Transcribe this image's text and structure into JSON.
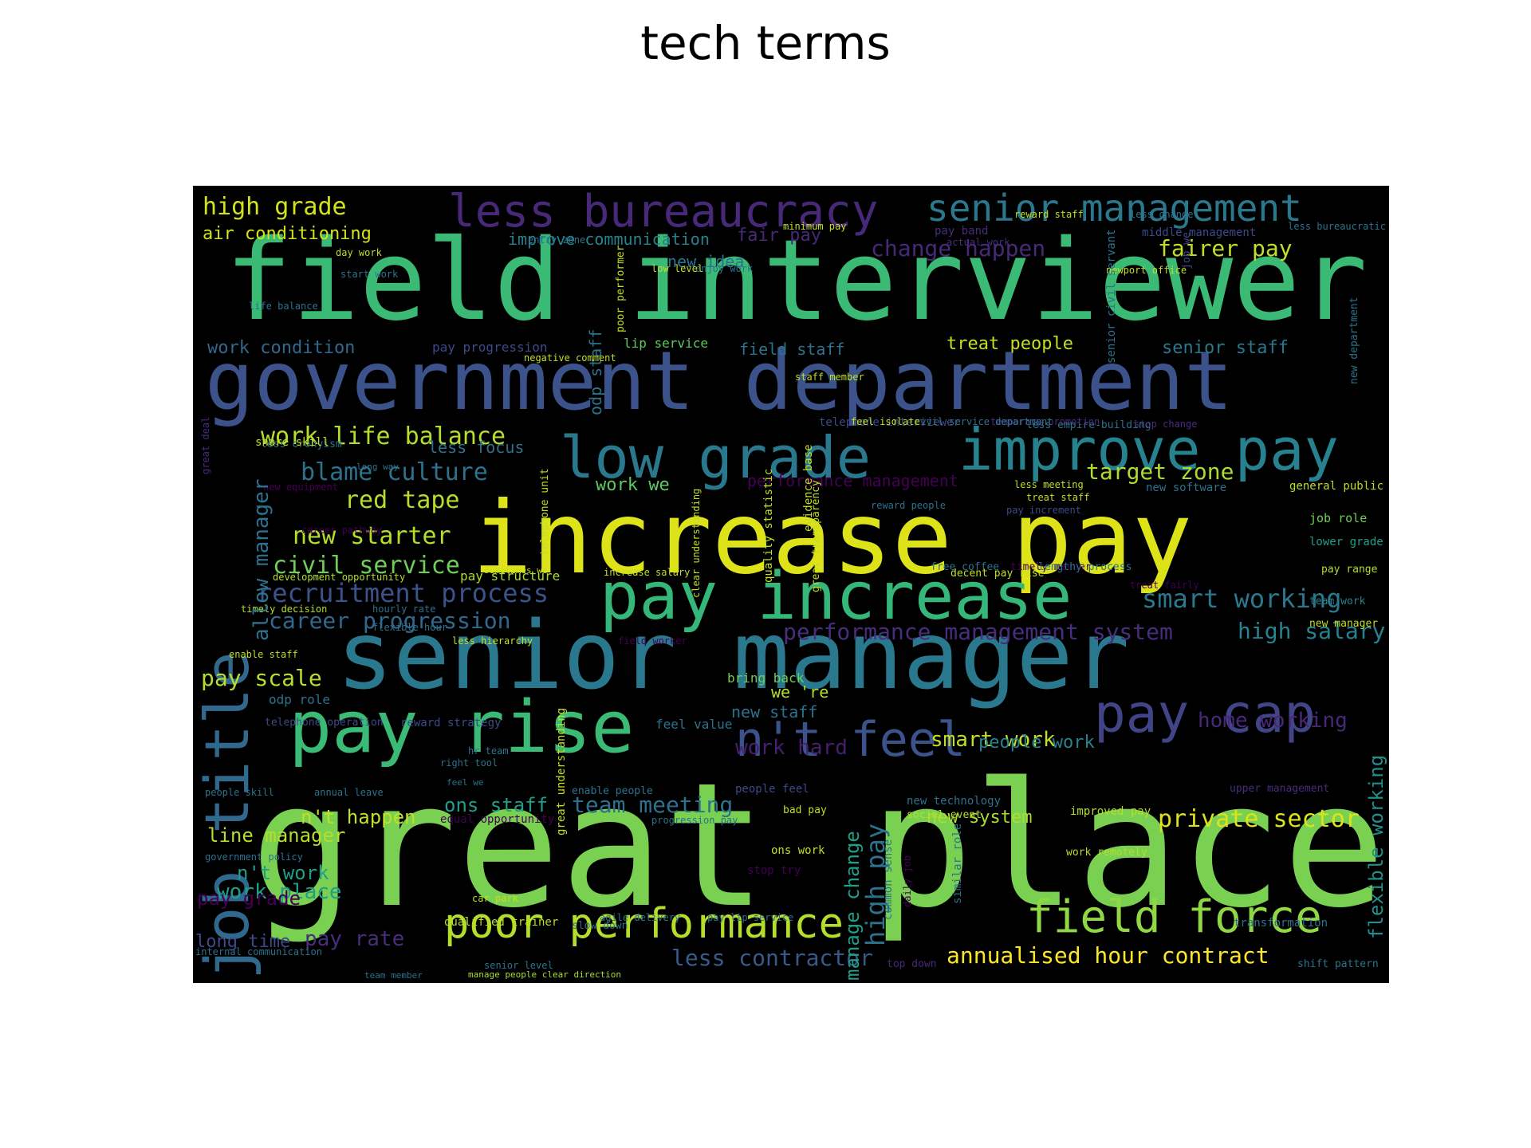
{
  "chart_data": {
    "type": "wordcloud",
    "title": "tech terms",
    "background": "#000000",
    "colormap": "viridis",
    "words": [
      {
        "text": "great place",
        "weight": 100,
        "color": "#7ad151"
      },
      {
        "text": "field interviewer",
        "weight": 92,
        "color": "#3bba75"
      },
      {
        "text": "senior manager",
        "weight": 85,
        "color": "#2a788e"
      },
      {
        "text": "government department",
        "weight": 78,
        "color": "#3b528b"
      },
      {
        "text": "increase pay",
        "weight": 82,
        "color": "#dde318"
      },
      {
        "text": "pay increase",
        "weight": 62,
        "color": "#35b779"
      },
      {
        "text": "pay rise",
        "weight": 62,
        "color": "#3bba75"
      },
      {
        "text": "job title",
        "weight": 58,
        "color": "#31688e"
      },
      {
        "text": "low grade",
        "weight": 52,
        "color": "#2a788e"
      },
      {
        "text": "improve pay",
        "weight": 52,
        "color": "#26828e"
      },
      {
        "text": "pay cap",
        "weight": 50,
        "color": "#414487"
      },
      {
        "text": "poor performance",
        "weight": 42,
        "color": "#b5de2b"
      },
      {
        "text": "field force",
        "weight": 44,
        "color": "#8fd744"
      },
      {
        "text": "less bureaucracy",
        "weight": 40,
        "color": "#482878"
      },
      {
        "text": "senior management",
        "weight": 38,
        "color": "#2a788e"
      },
      {
        "text": "n't feel",
        "weight": 40,
        "color": "#3b528b"
      },
      {
        "text": "work life balance",
        "weight": 22,
        "color": "#b5de2b"
      },
      {
        "text": "high grade",
        "weight": 22,
        "color": "#d2e21b"
      },
      {
        "text": "new starter",
        "weight": 22,
        "color": "#b5de2b"
      },
      {
        "text": "civil service",
        "weight": 22,
        "color": "#6ece58"
      },
      {
        "text": "recruitment process",
        "weight": 24,
        "color": "#3b528b"
      },
      {
        "text": "career progression",
        "weight": 22,
        "color": "#31688e"
      },
      {
        "text": "blame culture",
        "weight": 22,
        "color": "#2c728e"
      },
      {
        "text": "red tape",
        "weight": 22,
        "color": "#b5de2b"
      },
      {
        "text": "pay scale",
        "weight": 22,
        "color": "#b5de2b"
      },
      {
        "text": "smart working",
        "weight": 26,
        "color": "#2a788e"
      },
      {
        "text": "team meeting",
        "weight": 22,
        "color": "#2c728e"
      },
      {
        "text": "private sector",
        "weight": 24,
        "color": "#dde318"
      },
      {
        "text": "annualised hour contract",
        "weight": 24,
        "color": "#fde725"
      },
      {
        "text": "less contractor",
        "weight": 22,
        "color": "#38598c"
      },
      {
        "text": "high salary",
        "weight": 22,
        "color": "#26828e"
      },
      {
        "text": "target zone",
        "weight": 22,
        "color": "#addc30"
      },
      {
        "text": "fairer pay",
        "weight": 22,
        "color": "#c2df23"
      },
      {
        "text": "change happen",
        "weight": 22,
        "color": "#482878"
      },
      {
        "text": "performance management system",
        "weight": 22,
        "color": "#472d7b"
      },
      {
        "text": "home working",
        "weight": 20,
        "color": "#482878"
      },
      {
        "text": "smart work",
        "weight": 20,
        "color": "#c2df23"
      },
      {
        "text": "work hard",
        "weight": 20,
        "color": "#481f70"
      },
      {
        "text": "work place",
        "weight": 20,
        "color": "#1f9e89"
      },
      {
        "text": "pay rate",
        "weight": 20,
        "color": "#472d7b"
      },
      {
        "text": "ons staff",
        "weight": 18,
        "color": "#1f9e89"
      },
      {
        "text": "line manager",
        "weight": 18,
        "color": "#b5de2b"
      },
      {
        "text": "n't work",
        "weight": 18,
        "color": "#1f9e89"
      },
      {
        "text": "n't happen",
        "weight": 18,
        "color": "#c2df23"
      },
      {
        "text": "pay grade",
        "weight": 18,
        "color": "#440154"
      },
      {
        "text": "long time",
        "weight": 16,
        "color": "#3e4989"
      },
      {
        "text": "high pay",
        "weight": 20,
        "color": "#2c728e"
      },
      {
        "text": "manage change",
        "weight": 16,
        "color": "#1f9e89"
      },
      {
        "text": "flexible working",
        "weight": 16,
        "color": "#21908d"
      },
      {
        "text": "work condition",
        "weight": 16,
        "color": "#31688e"
      },
      {
        "text": "treat people",
        "weight": 18,
        "color": "#c2df23"
      },
      {
        "text": "senior staff",
        "weight": 16,
        "color": "#2a788e"
      },
      {
        "text": "people work",
        "weight": 18,
        "color": "#26828e"
      },
      {
        "text": "new system",
        "weight": 18,
        "color": "#addc30"
      },
      {
        "text": "air conditioning",
        "weight": 18,
        "color": "#d2e21b"
      },
      {
        "text": "improve communication",
        "weight": 16,
        "color": "#26828e"
      },
      {
        "text": "fair pay",
        "weight": 18,
        "color": "#482878"
      },
      {
        "text": "new idea",
        "weight": 16,
        "color": "#2c728e"
      },
      {
        "text": "field staff",
        "weight": 16,
        "color": "#2c728e"
      },
      {
        "text": "pay progression",
        "weight": 14,
        "color": "#3e4989"
      },
      {
        "text": "work we",
        "weight": 18,
        "color": "#5ec962"
      },
      {
        "text": "less focus",
        "weight": 16,
        "color": "#2c728e"
      },
      {
        "text": "pay structure",
        "weight": 14,
        "color": "#addc30"
      },
      {
        "text": "new staff",
        "weight": 16,
        "color": "#2c728e"
      },
      {
        "text": "we 're",
        "weight": 16,
        "color": "#b5de2b"
      },
      {
        "text": "feel value",
        "weight": 14,
        "color": "#2c728e"
      },
      {
        "text": "bring back",
        "weight": 14,
        "color": "#6ece58"
      },
      {
        "text": "odp staff",
        "weight": 14,
        "color": "#2c728e"
      },
      {
        "text": "lip service",
        "weight": 13,
        "color": "#5ec962"
      },
      {
        "text": "performance management",
        "weight": 16,
        "color": "#440154"
      },
      {
        "text": "reward strategy",
        "weight": 12,
        "color": "#3e4989"
      },
      {
        "text": "odp role",
        "weight": 12,
        "color": "#2c728e"
      },
      {
        "text": "telephone operation",
        "weight": 11,
        "color": "#3e4989"
      },
      {
        "text": "qualified trainer",
        "weight": 11,
        "color": "#b5de2b"
      },
      {
        "text": "middle management",
        "weight": 11,
        "color": "#3e4989"
      },
      {
        "text": "new software",
        "weight": 11,
        "color": "#2c728e"
      },
      {
        "text": "general public",
        "weight": 11,
        "color": "#b5de2b"
      },
      {
        "text": "job role",
        "weight": 11,
        "color": "#6ece58"
      },
      {
        "text": "lower grade",
        "weight": 10,
        "color": "#1f9e89"
      },
      {
        "text": "pay range",
        "weight": 10,
        "color": "#b5de2b"
      },
      {
        "text": "team work",
        "weight": 10,
        "color": "#26828e"
      },
      {
        "text": "new manager",
        "weight": 10,
        "color": "#c2df23"
      },
      {
        "text": "improved pay",
        "weight": 11,
        "color": "#b5de2b"
      },
      {
        "text": "work remotely",
        "weight": 10,
        "color": "#b5de2b"
      },
      {
        "text": "transformation",
        "weight": 11,
        "color": "#2c728e"
      },
      {
        "text": "shift pattern",
        "weight": 10,
        "color": "#2c728e"
      },
      {
        "text": "top down",
        "weight": 11,
        "color": "#482878"
      },
      {
        "text": "stop try",
        "weight": 11,
        "color": "#440154"
      },
      {
        "text": "ons work",
        "weight": 10,
        "color": "#c2df23"
      },
      {
        "text": "bad pay",
        "weight": 11,
        "color": "#c2df23"
      },
      {
        "text": "new technology",
        "weight": 11,
        "color": "#2c728e"
      },
      {
        "text": "social event",
        "weight": 10,
        "color": "#b5de2b"
      },
      {
        "text": "upper management",
        "weight": 10,
        "color": "#472d7b"
      },
      {
        "text": "people feel",
        "weight": 11,
        "color": "#3e4989"
      },
      {
        "text": "enable people",
        "weight": 10,
        "color": "#2c728e"
      },
      {
        "text": "progression pay",
        "weight": 10,
        "color": "#2c728e"
      },
      {
        "text": "slow down",
        "weight": 10,
        "color": "#2c728e"
      },
      {
        "text": "agile delivery",
        "weight": 10,
        "color": "#2c728e"
      },
      {
        "text": "pay lip service",
        "weight": 10,
        "color": "#2c728e"
      },
      {
        "text": "senior level",
        "weight": 10,
        "color": "#2c728e"
      },
      {
        "text": "manage people clear direction",
        "weight": 10,
        "color": "#addc30"
      },
      {
        "text": "team member",
        "weight": 9,
        "color": "#2c728e"
      },
      {
        "text": "car park",
        "weight": 10,
        "color": "#c2df23"
      },
      {
        "text": "equal opportunity",
        "weight": 11,
        "color": "#440154"
      },
      {
        "text": "internal communication",
        "weight": 10,
        "color": "#2c728e"
      },
      {
        "text": "government policy",
        "weight": 10,
        "color": "#2c728e"
      },
      {
        "text": "annual leave",
        "weight": 10,
        "color": "#2c728e"
      },
      {
        "text": "people skill",
        "weight": 10,
        "color": "#2c728e"
      },
      {
        "text": "right tool",
        "weight": 9,
        "color": "#2c728e"
      },
      {
        "text": "hr team",
        "weight": 9,
        "color": "#2c728e"
      },
      {
        "text": "feel we",
        "weight": 9,
        "color": "#2c728e"
      },
      {
        "text": "enable staff",
        "weight": 10,
        "color": "#c2df23"
      },
      {
        "text": "hourly rate",
        "weight": 10,
        "color": "#2c728e"
      },
      {
        "text": "less hierarchy",
        "weight": 10,
        "color": "#c2df23"
      },
      {
        "text": "field worker",
        "weight": 10,
        "color": "#440154"
      },
      {
        "text": "timely decision",
        "weight": 10,
        "color": "#b5de2b"
      },
      {
        "text": "flexible hour",
        "weight": 10,
        "color": "#2c728e"
      },
      {
        "text": "development opportunity",
        "weight": 10,
        "color": "#b5de2b"
      },
      {
        "text": "sometimes we",
        "weight": 9,
        "color": "#c2df23"
      },
      {
        "text": "increase salary",
        "weight": 10,
        "color": "#c2df23"
      },
      {
        "text": "free coffee",
        "weight": 11,
        "color": "#2c728e"
      },
      {
        "text": "timely manner",
        "weight": 10,
        "color": "#440154"
      },
      {
        "text": "lengthy process",
        "weight": 11,
        "color": "#2c728e"
      },
      {
        "text": "decent pay rise",
        "weight": 11,
        "color": "#c2df23"
      },
      {
        "text": "treat fairly",
        "weight": 11,
        "color": "#440154"
      },
      {
        "text": "pay increment",
        "weight": 11,
        "color": "#3e4989"
      },
      {
        "text": "treat staff",
        "weight": 10,
        "color": "#c2df23"
      },
      {
        "text": "less meeting",
        "weight": 10,
        "color": "#c2df23"
      },
      {
        "text": "new equipment",
        "weight": 10,
        "color": "#440154"
      },
      {
        "text": "career pathway",
        "weight": 10,
        "color": "#440154"
      },
      {
        "text": "long way",
        "weight": 10,
        "color": "#2c728e"
      },
      {
        "text": "less cronyism",
        "weight": 10,
        "color": "#2c728e"
      },
      {
        "text": "share skill",
        "weight": 9,
        "color": "#c2df23"
      },
      {
        "text": "telephone interviewer",
        "weight": 11,
        "color": "#3e4989"
      },
      {
        "text": "less empire-building",
        "weight": 13,
        "color": "#2c728e"
      },
      {
        "text": "stop change",
        "weight": 10,
        "color": "#472d7b"
      },
      {
        "text": "temporary promotion",
        "weight": 10,
        "color": "#472d7b"
      },
      {
        "text": "civil service department",
        "weight": 10,
        "color": "#2c728e"
      },
      {
        "text": "feel isolate",
        "weight": 10,
        "color": "#c2df23"
      },
      {
        "text": "staff member",
        "weight": 10,
        "color": "#c2df23"
      },
      {
        "text": "enjoy work",
        "weight": 10,
        "color": "#2c728e"
      },
      {
        "text": "low level",
        "weight": 10,
        "color": "#c2df23"
      },
      {
        "text": "negative comment",
        "weight": 10,
        "color": "#c2df23"
      },
      {
        "text": "pay band",
        "weight": 10,
        "color": "#472d7b"
      },
      {
        "text": "actual work",
        "weight": 11,
        "color": "#472d7b"
      },
      {
        "text": "minimum pay",
        "weight": 9,
        "color": "#c2df23"
      },
      {
        "text": "reward people",
        "weight": 9,
        "color": "#2c728e"
      },
      {
        "text": "reward staff",
        "weight": 9,
        "color": "#c2df23"
      },
      {
        "text": "less change",
        "weight": 9,
        "color": "#2c728e"
      },
      {
        "text": "less bureaucratic",
        "weight": 10,
        "color": "#2c728e"
      },
      {
        "text": "newport office",
        "weight": 10,
        "color": "#c2df23"
      },
      {
        "text": "start work",
        "weight": 9,
        "color": "#2c728e"
      },
      {
        "text": "day work",
        "weight": 10,
        "color": "#c2df23"
      },
      {
        "text": "entry zone",
        "weight": 10,
        "color": "#2c728e"
      },
      {
        "text": "life balance",
        "weight": 10,
        "color": "#2c728e"
      },
      {
        "text": "telephone unit",
        "weight": 11,
        "color": "#c2df23"
      },
      {
        "text": "clear understanding",
        "weight": 10,
        "color": "#c2df23"
      },
      {
        "text": "quality statistic",
        "weight": 10,
        "color": "#c2df23"
      },
      {
        "text": "evidence base",
        "weight": 11,
        "color": "#c2df23"
      },
      {
        "text": "great understanding",
        "weight": 10,
        "color": "#c2df23"
      },
      {
        "text": "great transparency",
        "weight": 10,
        "color": "#c2df23"
      },
      {
        "text": "similar role",
        "weight": 11,
        "color": "#2c728e"
      },
      {
        "text": "common sense",
        "weight": 10,
        "color": "#2c728e"
      },
      {
        "text": "poor performer",
        "weight": 10,
        "color": "#c2df23"
      },
      {
        "text": "senior civil servant",
        "weight": 10,
        "color": "#2c728e"
      },
      {
        "text": "job we",
        "weight": 18,
        "color": "#3e4989"
      },
      {
        "text": "new department",
        "weight": 10,
        "color": "#2c728e"
      },
      {
        "text": "allow manager",
        "weight": 10,
        "color": "#2c728e"
      },
      {
        "text": "great deal",
        "weight": 9,
        "color": "#472d7b"
      },
      {
        "text": "daily job",
        "weight": 9,
        "color": "#440154"
      }
    ]
  }
}
